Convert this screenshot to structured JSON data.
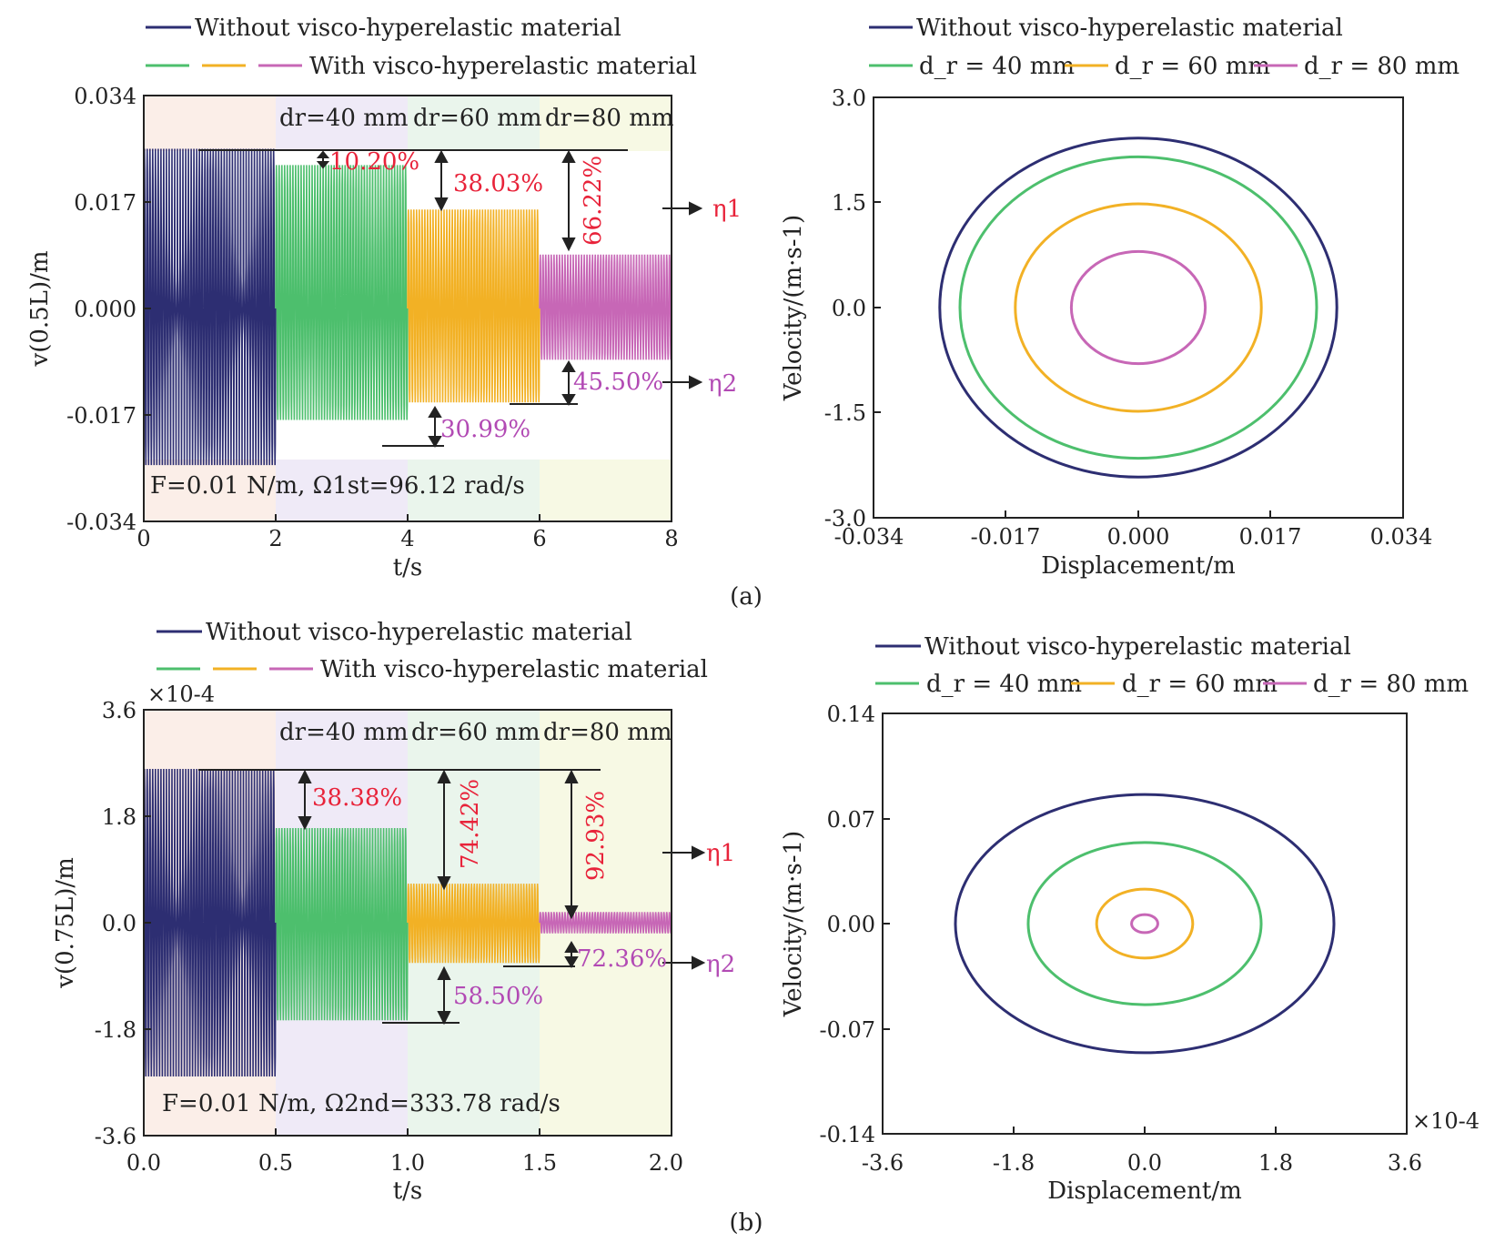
{
  "colors": {
    "without": "#2d2e72",
    "dr40": "#4dbf6d",
    "dr60": "#f2b125",
    "dr80": "#c767b6",
    "bg_segments": [
      "#fbeee8",
      "#efeaf7",
      "#eaf5ec",
      "#f7f9e4"
    ],
    "annotation_red": "#e8233a",
    "annotation_magenta": "#b24ab4",
    "axis": "#222222"
  },
  "figure_label_a": "(a)",
  "figure_label_b": "(b)",
  "chart_data": [
    {
      "type": "line",
      "panel": "a-left",
      "legend": {
        "line1": "Without visco-hyperelastic material",
        "line2": "With visco-hyperelastic material"
      },
      "segment_labels": [
        "d_r = 40 mm",
        "d_r = 60 mm",
        "d_r = 80 mm"
      ],
      "seg_label_text": [
        "dr=40 mm",
        "dr=60 mm",
        "dr=80 mm"
      ],
      "xlabel": "t/s",
      "ylabel": "v(0.5L)/m",
      "xlim": [
        0,
        8
      ],
      "ylim": [
        -0.034,
        0.034
      ],
      "xticks": [
        "0",
        "2",
        "4",
        "6",
        "8"
      ],
      "yticks": [
        "0.034",
        "0.017",
        "0.000",
        "-0.017",
        "-0.034"
      ],
      "segments": [
        {
          "t": [
            0,
            2
          ],
          "series": "Without visco-hyperelastic material",
          "amplitude_upper": 0.0255,
          "amplitude_lower": -0.025
        },
        {
          "t": [
            2,
            4
          ],
          "series": "d_r = 40 mm",
          "amplitude_upper": 0.0229,
          "amplitude_lower": -0.0178
        },
        {
          "t": [
            4,
            6
          ],
          "series": "d_r = 60 mm",
          "amplitude_upper": 0.0158,
          "amplitude_lower": -0.015
        },
        {
          "t": [
            6,
            8
          ],
          "series": "d_r = 80 mm",
          "amplitude_upper": 0.0086,
          "amplitude_lower": -0.0082
        }
      ],
      "annotations": {
        "r1": "10.20%",
        "r2": "38.03%",
        "r3": "66.22%",
        "r4": "30.99%",
        "r5": "45.50%",
        "eta1": "η1",
        "eta2": "η2"
      },
      "footnote": "F=0.01 N/m, Ω1st=96.12 rad/s"
    },
    {
      "type": "line",
      "panel": "a-right",
      "legend": {
        "line1": "Without visco-hyperelastic material",
        "dr40": "d_r = 40 mm",
        "dr60": "d_r = 60 mm",
        "dr80": "d_r = 80 mm"
      },
      "xlabel": "Displacement/m",
      "ylabel": "Velocity/(m·s-1)",
      "xlim": [
        -0.034,
        0.034
      ],
      "ylim": [
        -3.0,
        3.0
      ],
      "xticks": [
        "-0.034",
        "-0.017",
        "0.000",
        "0.017",
        "0.034"
      ],
      "yticks": [
        "3.0",
        "1.5",
        "0.0",
        "-1.5",
        "-3.0"
      ],
      "series": [
        {
          "name": "Without visco-hyperelastic material",
          "x_amplitude": 0.0255,
          "y_amplitude": 2.42
        },
        {
          "name": "d_r = 40 mm",
          "x_amplitude": 0.0229,
          "y_amplitude": 2.15
        },
        {
          "name": "d_r = 60 mm",
          "x_amplitude": 0.0158,
          "y_amplitude": 1.48
        },
        {
          "name": "d_r = 80 mm",
          "x_amplitude": 0.0086,
          "y_amplitude": 0.8
        }
      ]
    },
    {
      "type": "line",
      "panel": "b-left",
      "legend": {
        "line1": "Without visco-hyperelastic material",
        "line2": "With visco-hyperelastic material"
      },
      "segment_labels": [
        "d_r = 40 mm",
        "d_r = 60 mm",
        "d_r = 80 mm"
      ],
      "seg_label_text": [
        "dr=40 mm",
        "dr=60 mm",
        "dr=80 mm"
      ],
      "xlabel": "t/s",
      "ylabel": "v(0.75L)/m",
      "scale_note": "×10-4",
      "xlim": [
        0,
        2.0
      ],
      "ylim": [
        -3.6,
        3.6
      ],
      "xticks": [
        "0.0",
        "0.5",
        "1.0",
        "1.5",
        "2.0"
      ],
      "yticks": [
        "3.6",
        "1.8",
        "0.0",
        "-1.8",
        "-3.6"
      ],
      "segments": [
        {
          "t": [
            0,
            0.5
          ],
          "series": "Without visco-hyperelastic material",
          "amplitude_upper": 2.6,
          "amplitude_lower": -2.6
        },
        {
          "t": [
            0.5,
            1.0
          ],
          "series": "d_r = 40 mm",
          "amplitude_upper": 1.6,
          "amplitude_lower": -1.65
        },
        {
          "t": [
            1.0,
            1.5
          ],
          "series": "d_r = 60 mm",
          "amplitude_upper": 0.66,
          "amplitude_lower": -0.68
        },
        {
          "t": [
            1.5,
            2.0
          ],
          "series": "d_r = 80 mm",
          "amplitude_upper": 0.18,
          "amplitude_lower": -0.18
        }
      ],
      "annotations": {
        "r1": "38.38%",
        "r2": "74.42%",
        "r3": "92.93%",
        "r4": "58.50%",
        "r5": "72.36%",
        "eta1": "η1",
        "eta2": "η2"
      },
      "footnote": "F=0.01 N/m, Ω2nd=333.78 rad/s"
    },
    {
      "type": "line",
      "panel": "b-right",
      "legend": {
        "line1": "Without visco-hyperelastic material",
        "dr40": "d_r = 40 mm",
        "dr60": "d_r = 60 mm",
        "dr80": "d_r = 80 mm"
      },
      "xlabel": "Displacement/m",
      "ylabel": "Velocity/(m·s-1)",
      "scale_note": "×10-4",
      "xlim": [
        -3.6,
        3.6
      ],
      "ylim": [
        -0.14,
        0.14
      ],
      "xticks": [
        "-3.6",
        "-1.8",
        "0.0",
        "1.8",
        "3.6"
      ],
      "yticks": [
        "0.14",
        "0.07",
        "0.00",
        "-0.07",
        "-0.14"
      ],
      "series": [
        {
          "name": "Without visco-hyperelastic material",
          "x_amplitude": 2.6,
          "y_amplitude": 0.086
        },
        {
          "name": "d_r = 40 mm",
          "x_amplitude": 1.6,
          "y_amplitude": 0.054
        },
        {
          "name": "d_r = 60 mm",
          "x_amplitude": 0.66,
          "y_amplitude": 0.023
        },
        {
          "name": "d_r = 80 mm",
          "x_amplitude": 0.18,
          "y_amplitude": 0.006
        }
      ]
    }
  ]
}
